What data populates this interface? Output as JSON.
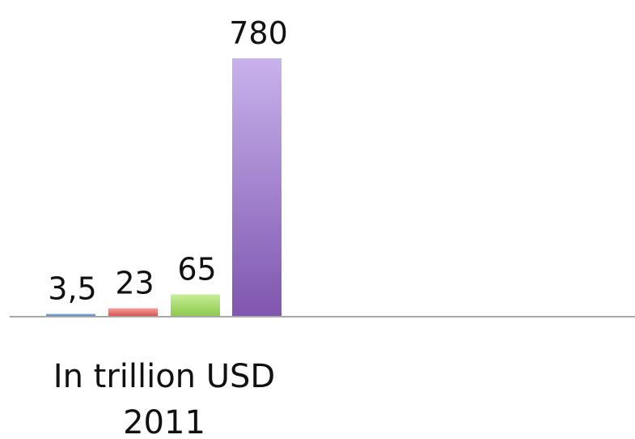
{
  "chart_data": {
    "type": "bar",
    "categories": [
      "In trillion USD\n2011"
    ],
    "series": [
      {
        "values": [
          3.5
        ],
        "color": "#4f81bd"
      },
      {
        "values": [
          23
        ],
        "color": "#e8625f"
      },
      {
        "values": [
          65
        ],
        "color": "#9ad25a"
      },
      {
        "values": [
          780
        ],
        "color": "#8a64b8"
      }
    ],
    "data_labels": [
      "3,5",
      "23",
      "65",
      "780"
    ],
    "ylim": [
      0,
      780
    ],
    "grid": false,
    "legend": "none"
  }
}
